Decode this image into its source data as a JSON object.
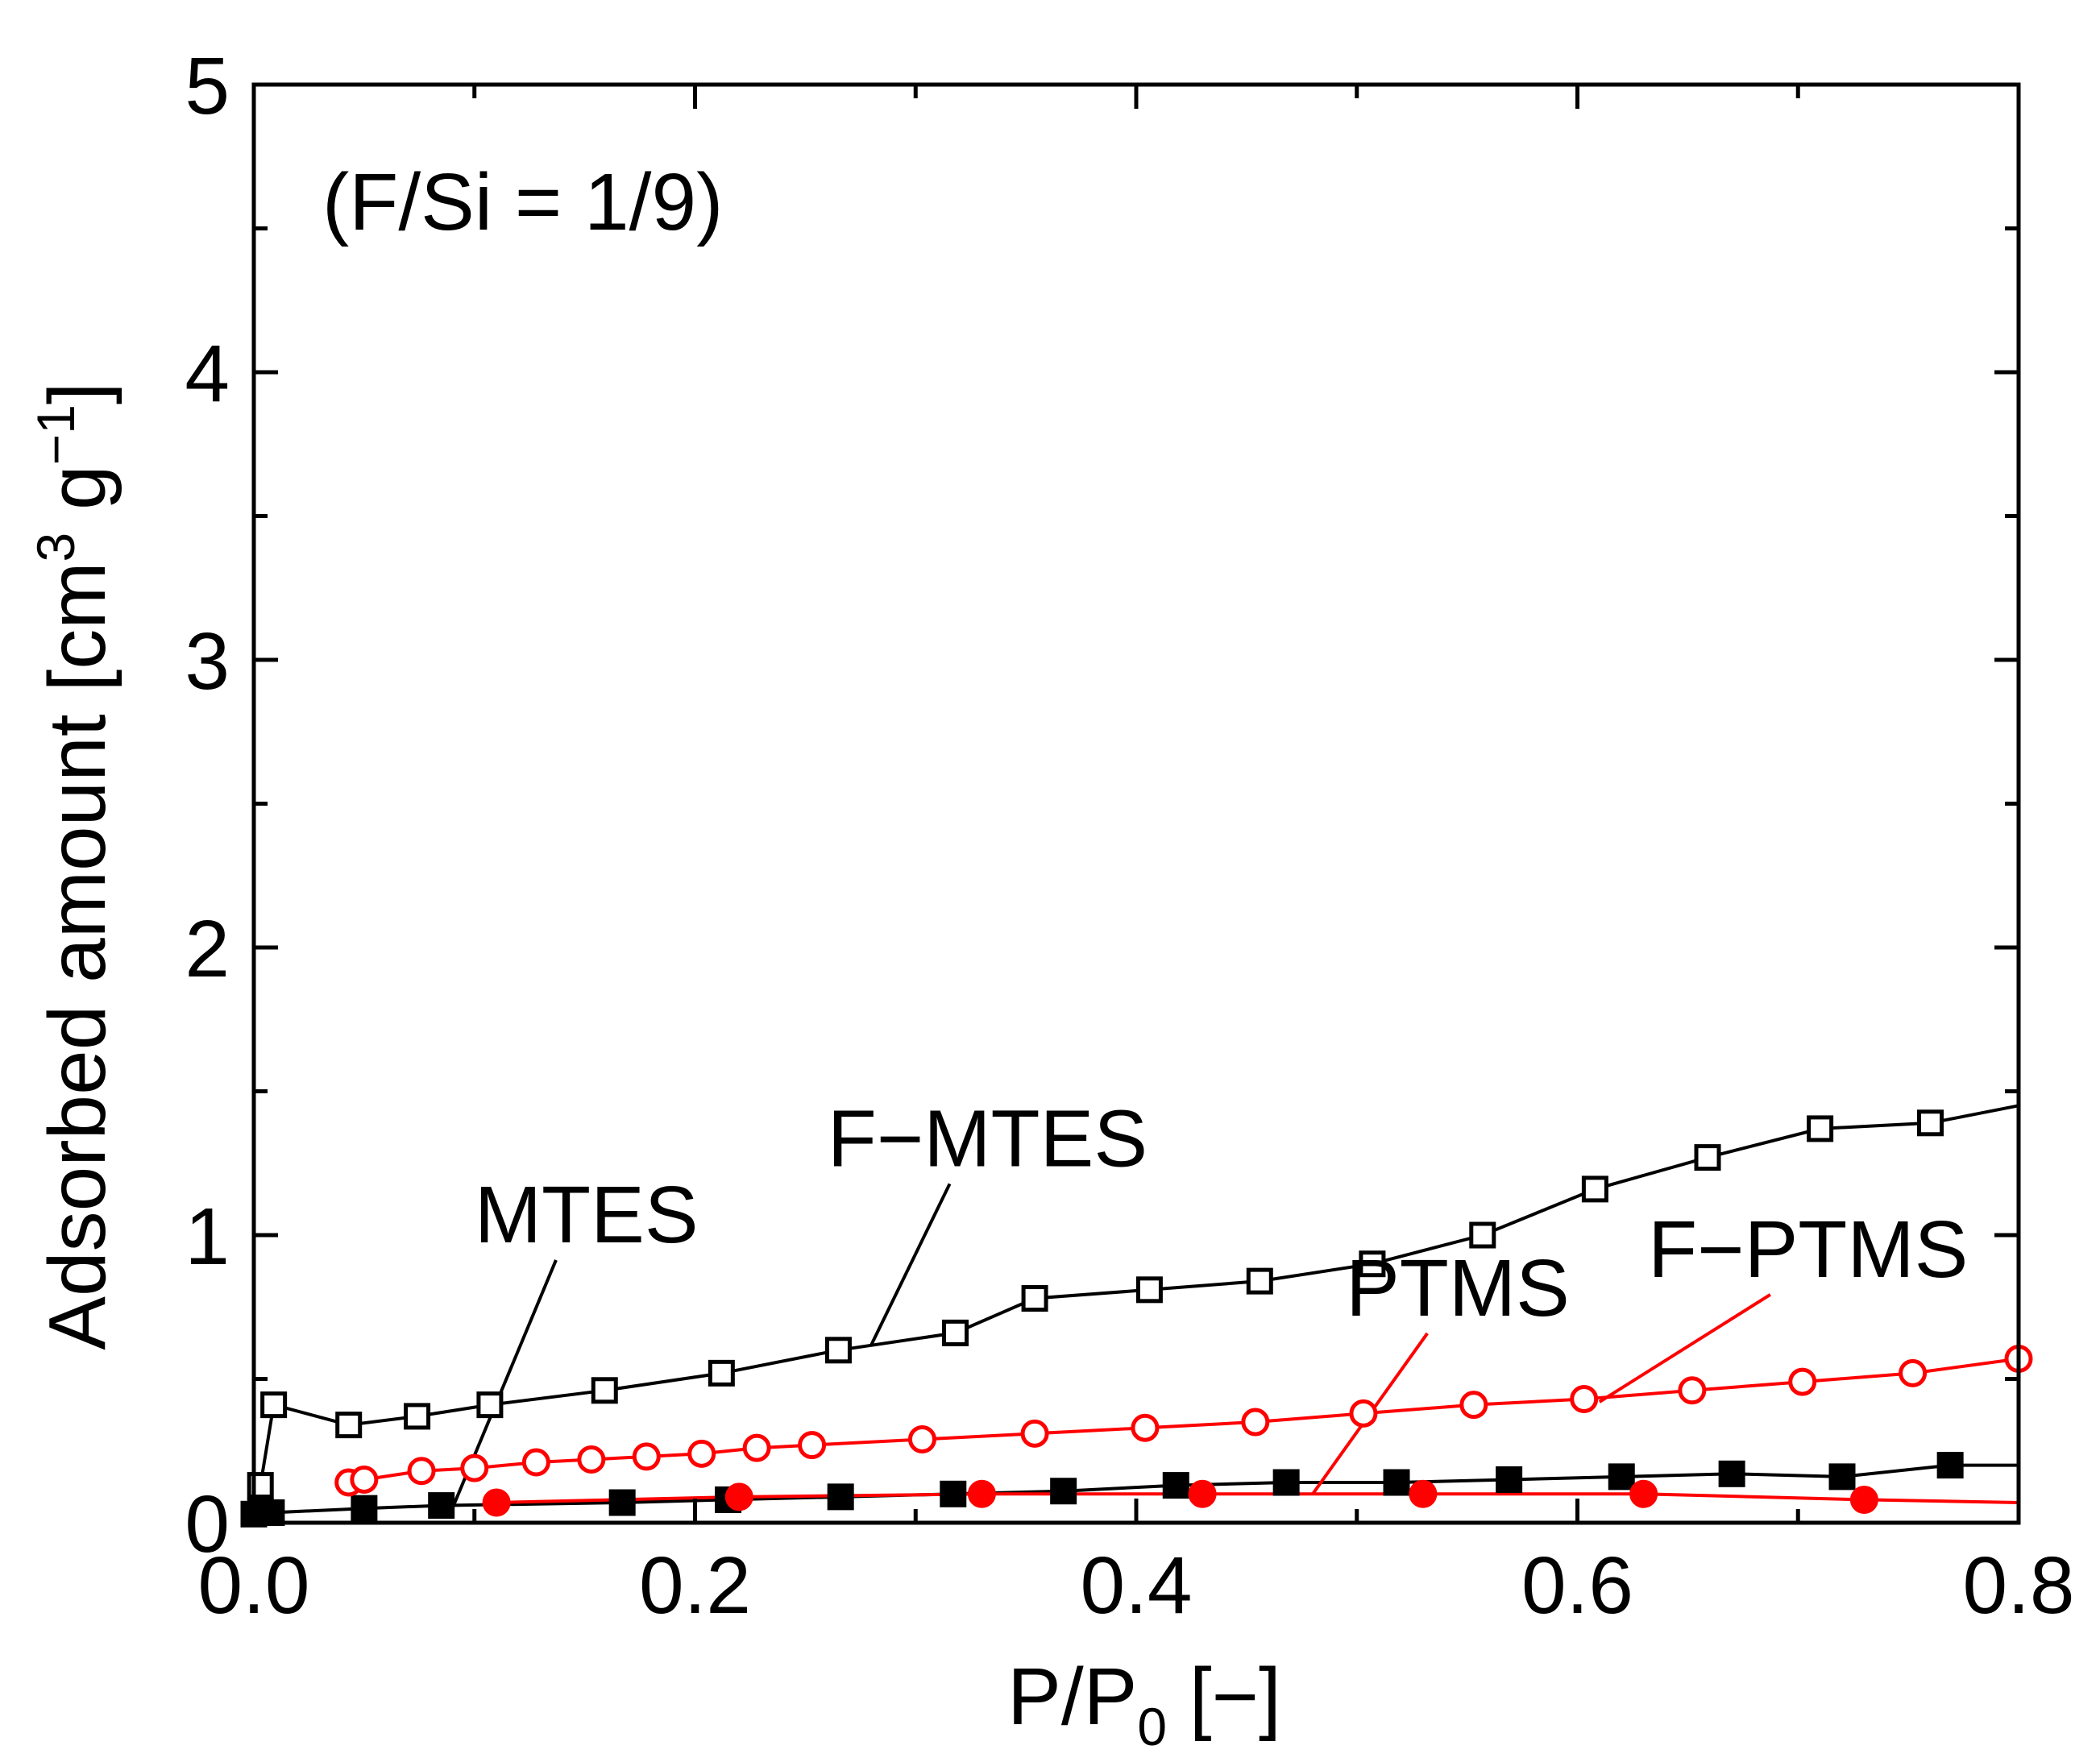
{
  "chart_data": {
    "type": "scatter",
    "title": "",
    "annotation": "(F/Si = 1/9)",
    "xlabel": {
      "main": "P/P",
      "sub": "0",
      "tail": " [−]"
    },
    "ylabel": {
      "main": "Adsorbed amount [cm",
      "sup1": "3",
      "mid": " g",
      "sup2": "−1",
      "tail": "]"
    },
    "xlim": [
      0,
      0.8
    ],
    "ylim": [
      0,
      5
    ],
    "x_ticks": [
      "0.0",
      "0.2",
      "0.4",
      "0.6",
      "0.8"
    ],
    "y_ticks": [
      "0",
      "1",
      "2",
      "3",
      "4",
      "5"
    ],
    "grid": false,
    "series": [
      {
        "name": "F−MTES",
        "color": "#000000",
        "marker": "square",
        "filled": false,
        "x": [
          0.003,
          0.009,
          0.043,
          0.074,
          0.107,
          0.159,
          0.212,
          0.265,
          0.318,
          0.354,
          0.406,
          0.456,
          0.507,
          0.557,
          0.608,
          0.659,
          0.71,
          0.76,
          0.8
        ],
        "y": [
          0.13,
          0.41,
          0.34,
          0.37,
          0.41,
          0.46,
          0.52,
          0.6,
          0.66,
          0.78,
          0.81,
          0.84,
          0.9,
          1.0,
          1.16,
          1.27,
          1.37,
          1.39,
          1.45
        ],
        "marker_count": 18,
        "label_anchor": [
          0.28,
          0.62
        ]
      },
      {
        "name": "MTES",
        "color": "#000000",
        "marker": "square",
        "filled": true,
        "x": [
          0.0,
          0.003,
          0.008,
          0.05,
          0.085,
          0.167,
          0.215,
          0.266,
          0.317,
          0.367,
          0.418,
          0.468,
          0.518,
          0.569,
          0.62,
          0.67,
          0.72,
          0.769,
          0.8
        ],
        "y": [
          0.03,
          0.04,
          0.035,
          0.05,
          0.06,
          0.07,
          0.08,
          0.09,
          0.1,
          0.11,
          0.13,
          0.14,
          0.14,
          0.15,
          0.16,
          0.17,
          0.16,
          0.2,
          0.2
        ],
        "marker_count": 18,
        "label_anchor": [
          0.09,
          0.05
        ]
      },
      {
        "name": "F−PTMS",
        "color": "#ff0000",
        "marker": "circle",
        "filled": false,
        "x": [
          0.043,
          0.05,
          0.076,
          0.1,
          0.128,
          0.153,
          0.178,
          0.203,
          0.228,
          0.253,
          0.303,
          0.354,
          0.404,
          0.454,
          0.503,
          0.553,
          0.603,
          0.652,
          0.702,
          0.752,
          0.8
        ],
        "y": [
          0.14,
          0.15,
          0.18,
          0.19,
          0.21,
          0.22,
          0.23,
          0.24,
          0.26,
          0.27,
          0.29,
          0.31,
          0.33,
          0.35,
          0.38,
          0.41,
          0.43,
          0.46,
          0.49,
          0.52,
          0.57
        ],
        "marker_count": 21,
        "label_anchor": [
          0.61,
          0.42
        ]
      },
      {
        "name": "PTMS",
        "color": "#ff0000",
        "marker": "circle",
        "filled": true,
        "x": [
          0.11,
          0.22,
          0.33,
          0.43,
          0.53,
          0.63,
          0.73,
          0.8
        ],
        "y": [
          0.07,
          0.09,
          0.1,
          0.1,
          0.1,
          0.1,
          0.08,
          0.07
        ],
        "marker_count": 7,
        "label_anchor": [
          0.48,
          0.1
        ]
      }
    ],
    "series_labels": [
      {
        "text": "MTES",
        "at": [
          0.1,
          0.975
        ]
      },
      {
        "text": "F−MTES",
        "at": [
          0.26,
          1.24
        ]
      },
      {
        "text": "PTMS",
        "at": [
          0.495,
          0.72
        ]
      },
      {
        "text": "F−PTMS",
        "at": [
          0.632,
          0.855
        ]
      }
    ]
  }
}
